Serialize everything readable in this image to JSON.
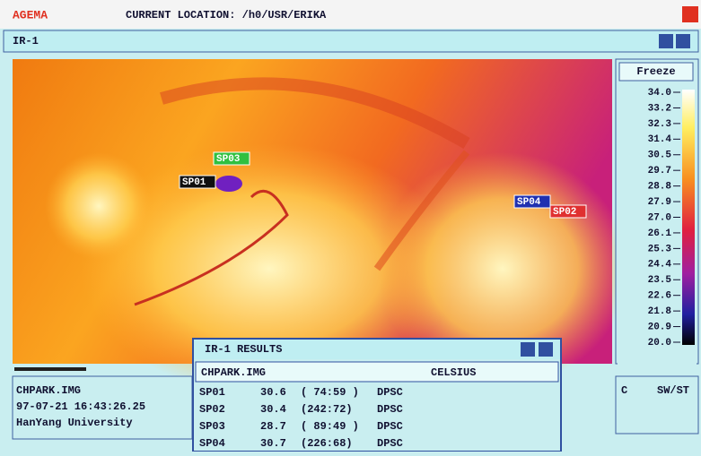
{
  "app": {
    "logo": "AGEMA",
    "location": "CURRENT LOCATION: /h0/USR/ERIKA"
  },
  "window": {
    "title": "IR-1",
    "freeze_button": "Freeze",
    "scale": [
      "34.0",
      "33.2",
      "32.3",
      "31.4",
      "30.5",
      "29.7",
      "28.8",
      "27.9",
      "27.0",
      "26.1",
      "25.3",
      "24.4",
      "23.5",
      "22.6",
      "21.8",
      "20.9",
      "20.0"
    ],
    "spots": [
      "SP01",
      "SP02",
      "SP03",
      "SP04"
    ],
    "info": {
      "file": "CHPARK.IMG",
      "timestamp": "97-07-21 16:43:26.25",
      "institution": "HanYang University"
    },
    "units_panel": {
      "unit": "C",
      "mode": "SW/ST"
    }
  },
  "results": {
    "title": "IR-1 RESULTS",
    "file": "CHPARK.IMG",
    "unit": "CELSIUS",
    "rows": [
      [
        "SP01",
        "30.6",
        "( 74:59 )",
        "DPSC"
      ],
      [
        "SP02",
        "30.4",
        "(242:72)",
        "DPSC"
      ],
      [
        "SP03",
        "28.7",
        "( 89:49 )",
        "DPSC"
      ],
      [
        "SP04",
        "30.7",
        "(226:68)",
        "DPSC"
      ]
    ]
  }
}
